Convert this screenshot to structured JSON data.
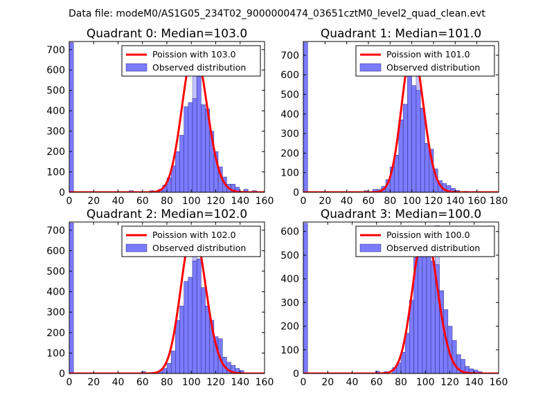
{
  "figure": {
    "suptitle": "Data file: modeM0/AS1G05_234T02_9000000474_03651cztM0_level2_quad_clean.evt"
  },
  "chart_data": [
    {
      "type": "bar",
      "title": "Quadrant 0: Median=103.0",
      "median": 103.0,
      "xlim": [
        0,
        160
      ],
      "ylim": [
        0,
        740
      ],
      "xticks": [
        0,
        20,
        40,
        60,
        80,
        100,
        120,
        140,
        160
      ],
      "xtick_labels": [
        "0",
        "20",
        "40",
        "60",
        "80",
        "100",
        "120",
        "140",
        "160"
      ],
      "yticks": [
        0,
        100,
        200,
        300,
        400,
        500,
        600,
        700
      ],
      "ytick_labels": [
        "0",
        "100",
        "200",
        "300",
        "400",
        "500",
        "600",
        "700"
      ],
      "legend": [
        "Poission with 103.0",
        "Observed distribution"
      ],
      "legend_loc": "upper right",
      "bin_width": 3.5,
      "bins": [
        {
          "x": 0,
          "y": 735
        },
        {
          "x": 49,
          "y": 8
        },
        {
          "x": 66,
          "y": 8
        },
        {
          "x": 73,
          "y": 15
        },
        {
          "x": 76.5,
          "y": 35
        },
        {
          "x": 80,
          "y": 70
        },
        {
          "x": 83.5,
          "y": 130
        },
        {
          "x": 87,
          "y": 200
        },
        {
          "x": 90.5,
          "y": 280
        },
        {
          "x": 94,
          "y": 420
        },
        {
          "x": 97.5,
          "y": 440
        },
        {
          "x": 101,
          "y": 460
        },
        {
          "x": 104.5,
          "y": 645
        },
        {
          "x": 108,
          "y": 430
        },
        {
          "x": 111.5,
          "y": 410
        },
        {
          "x": 115,
          "y": 300
        },
        {
          "x": 118.5,
          "y": 200
        },
        {
          "x": 122,
          "y": 125
        },
        {
          "x": 125.5,
          "y": 75
        },
        {
          "x": 129,
          "y": 40
        },
        {
          "x": 132.5,
          "y": 40
        },
        {
          "x": 136,
          "y": 25
        },
        {
          "x": 143,
          "y": 15
        },
        {
          "x": 150,
          "y": 8
        }
      ],
      "light_bins": [
        {
          "x": 101,
          "y": 600
        }
      ]
    },
    {
      "type": "bar",
      "title": "Quadrant 1: Median=101.0",
      "median": 101.0,
      "xlim": [
        0,
        180
      ],
      "ylim": [
        0,
        770
      ],
      "xticks": [
        0,
        20,
        40,
        60,
        80,
        100,
        120,
        140,
        160,
        180
      ],
      "xtick_labels": [
        "0",
        "20",
        "40",
        "60",
        "80",
        "100",
        "120",
        "140",
        "160",
        "180"
      ],
      "yticks": [
        0,
        100,
        200,
        300,
        400,
        500,
        600,
        700
      ],
      "ytick_labels": [
        "0",
        "100",
        "200",
        "300",
        "400",
        "500",
        "600",
        "700"
      ],
      "legend": [
        "Poission with 101.0",
        "Observed distribution"
      ],
      "legend_loc": "upper right",
      "bin_width": 4,
      "bins": [
        {
          "x": 0,
          "y": 765
        },
        {
          "x": 56,
          "y": 8
        },
        {
          "x": 64,
          "y": 15
        },
        {
          "x": 68,
          "y": 15
        },
        {
          "x": 72,
          "y": 30
        },
        {
          "x": 76,
          "y": 65
        },
        {
          "x": 80,
          "y": 130
        },
        {
          "x": 84,
          "y": 190
        },
        {
          "x": 88,
          "y": 370
        },
        {
          "x": 92,
          "y": 450
        },
        {
          "x": 96,
          "y": 600
        },
        {
          "x": 100,
          "y": 545
        },
        {
          "x": 104,
          "y": 520
        },
        {
          "x": 108,
          "y": 430
        },
        {
          "x": 112,
          "y": 250
        },
        {
          "x": 116,
          "y": 220
        },
        {
          "x": 120,
          "y": 120
        },
        {
          "x": 124,
          "y": 60
        },
        {
          "x": 128,
          "y": 45
        },
        {
          "x": 132,
          "y": 35
        },
        {
          "x": 136,
          "y": 20
        },
        {
          "x": 140,
          "y": 10
        },
        {
          "x": 148,
          "y": 5
        }
      ],
      "light_bins": [
        {
          "x": 104,
          "y": 700
        }
      ]
    },
    {
      "type": "bar",
      "title": "Quadrant 2: Median=102.0",
      "median": 102.0,
      "xlim": [
        0,
        160
      ],
      "ylim": [
        0,
        740
      ],
      "xticks": [
        0,
        20,
        40,
        60,
        80,
        100,
        120,
        140,
        160
      ],
      "xtick_labels": [
        "0",
        "20",
        "40",
        "60",
        "80",
        "100",
        "120",
        "140",
        "160"
      ],
      "yticks": [
        0,
        100,
        200,
        300,
        400,
        500,
        600,
        700
      ],
      "ytick_labels": [
        "0",
        "100",
        "200",
        "300",
        "400",
        "500",
        "600",
        "700"
      ],
      "legend": [
        "Poission with 102.0",
        "Observed distribution"
      ],
      "legend_loc": "upper right",
      "bin_width": 3.5,
      "bins": [
        {
          "x": 0,
          "y": 735
        },
        {
          "x": 59,
          "y": 10
        },
        {
          "x": 73,
          "y": 10
        },
        {
          "x": 76.5,
          "y": 25
        },
        {
          "x": 80,
          "y": 50
        },
        {
          "x": 83.5,
          "y": 110
        },
        {
          "x": 87,
          "y": 260
        },
        {
          "x": 90.5,
          "y": 330
        },
        {
          "x": 94,
          "y": 450
        },
        {
          "x": 97.5,
          "y": 470
        },
        {
          "x": 101,
          "y": 550
        },
        {
          "x": 104.5,
          "y": 560
        },
        {
          "x": 108,
          "y": 420
        },
        {
          "x": 111.5,
          "y": 330
        },
        {
          "x": 115,
          "y": 260
        },
        {
          "x": 118.5,
          "y": 180
        },
        {
          "x": 122,
          "y": 170
        },
        {
          "x": 125.5,
          "y": 80
        },
        {
          "x": 129,
          "y": 55
        },
        {
          "x": 132.5,
          "y": 40
        },
        {
          "x": 136,
          "y": 25
        },
        {
          "x": 139.5,
          "y": 15
        }
      ],
      "light_bins": [
        {
          "x": 101,
          "y": 700
        }
      ]
    },
    {
      "type": "bar",
      "title": "Quadrant 3: Median=100.0",
      "median": 100.0,
      "xlim": [
        0,
        160
      ],
      "ylim": [
        0,
        640
      ],
      "xticks": [
        0,
        20,
        40,
        60,
        80,
        100,
        120,
        140,
        160
      ],
      "xtick_labels": [
        "0",
        "20",
        "40",
        "60",
        "80",
        "100",
        "120",
        "140",
        "160"
      ],
      "yticks": [
        0,
        100,
        200,
        300,
        400,
        500,
        600
      ],
      "ytick_labels": [
        "0",
        "100",
        "200",
        "300",
        "400",
        "500",
        "600"
      ],
      "legend": [
        "Poission with 100.0",
        "Observed distribution"
      ],
      "legend_loc": "upper right",
      "bin_width": 3.5,
      "bins": [
        {
          "x": 0,
          "y": 635
        },
        {
          "x": 59,
          "y": 10
        },
        {
          "x": 66,
          "y": 8
        },
        {
          "x": 73,
          "y": 25
        },
        {
          "x": 76.5,
          "y": 45
        },
        {
          "x": 80,
          "y": 90
        },
        {
          "x": 83.5,
          "y": 170
        },
        {
          "x": 87,
          "y": 310
        },
        {
          "x": 90.5,
          "y": 490
        },
        {
          "x": 94,
          "y": 510
        },
        {
          "x": 97.5,
          "y": 545
        },
        {
          "x": 101,
          "y": 580
        },
        {
          "x": 104.5,
          "y": 475
        },
        {
          "x": 108,
          "y": 460
        },
        {
          "x": 111.5,
          "y": 350
        },
        {
          "x": 115,
          "y": 270
        },
        {
          "x": 118.5,
          "y": 200
        },
        {
          "x": 122,
          "y": 140
        },
        {
          "x": 125.5,
          "y": 80
        },
        {
          "x": 129,
          "y": 60
        },
        {
          "x": 132.5,
          "y": 30
        },
        {
          "x": 136,
          "y": 20
        },
        {
          "x": 139.5,
          "y": 15
        },
        {
          "x": 143,
          "y": 8
        }
      ],
      "light_bins": [
        {
          "x": 108,
          "y": 625
        }
      ]
    }
  ]
}
